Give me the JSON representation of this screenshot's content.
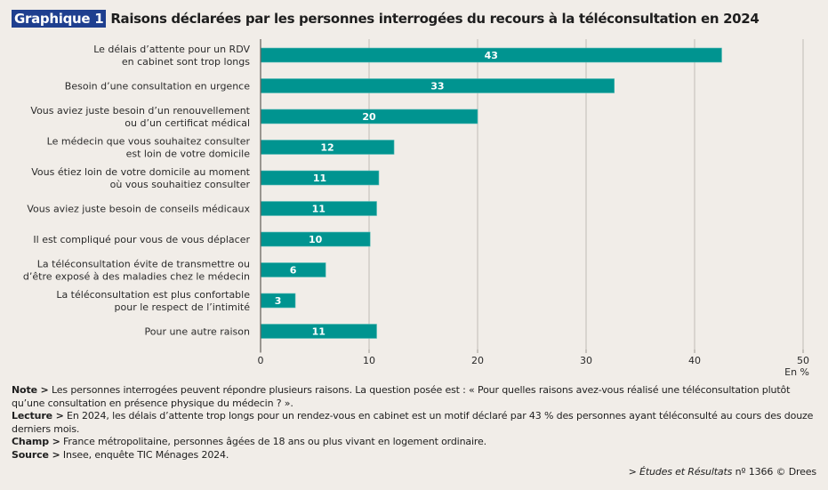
{
  "header": {
    "badge": "Graphique 1",
    "title": "Raisons déclarées par les personnes interrogées du recours à la téléconsultation en 2024"
  },
  "chart_data": {
    "type": "bar",
    "orientation": "horizontal",
    "title": "Raisons déclarées par les personnes interrogées du recours à la téléconsultation en 2024",
    "unit_label": "En %",
    "xlim": [
      0,
      50
    ],
    "xticks": [
      0,
      10,
      20,
      30,
      40,
      50
    ],
    "grid": true,
    "bar_color": "#009490",
    "categories": [
      [
        "Le délais d’attente pour un RDV",
        "en cabinet sont trop longs"
      ],
      [
        "Besoin d’une consultation en urgence"
      ],
      [
        "Vous aviez juste besoin d’un renouvellement",
        "ou d’un certificat médical"
      ],
      [
        "Le médecin que vous souhaitez consulter",
        "est loin de votre domicile"
      ],
      [
        "Vous étiez loin de votre domicile au moment",
        "où vous souhaitiez consulter"
      ],
      [
        "Vous aviez juste besoin de conseils médicaux"
      ],
      [
        "Il est compliqué pour vous de vous déplacer"
      ],
      [
        "La téléconsultation évite de transmettre ou",
        "d’être exposé à des maladies chez le médecin"
      ],
      [
        "La téléconsultation est plus confortable",
        "pour le respect de l’intimité"
      ],
      [
        "Pour une autre raison"
      ]
    ],
    "values": [
      42.5,
      32.6,
      20.0,
      12.3,
      10.9,
      10.7,
      10.1,
      6.0,
      3.2,
      10.7
    ],
    "labels": [
      "43",
      "33",
      "20",
      "12",
      "11",
      "11",
      "10",
      "6",
      "3",
      "11"
    ]
  },
  "notes": {
    "note_label": "Note >",
    "note_text": " Les personnes interrogées peuvent répondre plusieurs raisons. La question posée est : « Pour quelles raisons avez-vous réalisé une téléconsultation plutôt qu’une consultation en présence physique du médecin ? ».",
    "lecture_label": "Lecture >",
    "lecture_text": " En 2024, les délais d’attente trop longs pour un rendez-vous en cabinet est un motif déclaré par 43 % des personnes ayant téléconsulté au cours des douze derniers mois.",
    "champ_label": "Champ >",
    "champ_text": " France métropolitaine, personnes âgées de 18 ans ou plus vivant en logement ordinaire.",
    "source_label": "Source >",
    "source_text": " Insee, enquête TIC Ménages 2024."
  },
  "credit": {
    "prefix": "> ",
    "publication": "Études et Résultats",
    "suffix": " nº 1366 © Drees"
  }
}
